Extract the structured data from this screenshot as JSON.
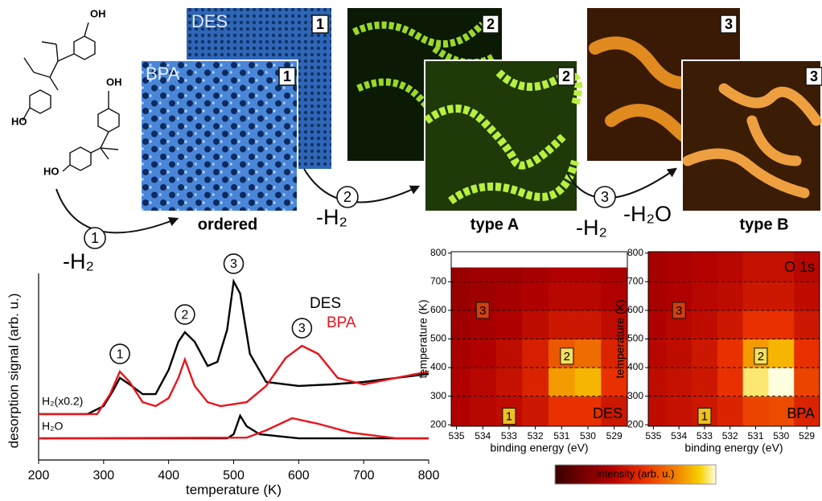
{
  "figure": {
    "panels": [
      {
        "label": "DES",
        "number": "1"
      },
      {
        "label": "BPA",
        "number": "1"
      },
      {
        "number": "2"
      },
      {
        "number": "2"
      },
      {
        "number": "3"
      },
      {
        "number": "3"
      }
    ],
    "phases": [
      "ordered",
      "type A",
      "type B"
    ],
    "steps": [
      {
        "number": "1",
        "loss": "-H₂"
      },
      {
        "number": "2",
        "loss": "-H₂"
      },
      {
        "number": "3",
        "loss": "-H₂",
        "loss2": "-H₂O"
      }
    ],
    "structure_labels": [
      "OH",
      "HO",
      "OH",
      "HO"
    ],
    "colorbar_label": "intensity (arb. u.)"
  },
  "chart_data": [
    {
      "type": "line",
      "xlabel": "temperature (K)",
      "ylabel": "desorption signal (arb. u.)",
      "xlim": [
        200,
        800
      ],
      "xticks": [
        200,
        300,
        400,
        500,
        600,
        700,
        800
      ],
      "ylim": [
        0,
        100
      ],
      "curve_labels": [
        "H₂(x0.2)",
        "H₂O"
      ],
      "series": [
        {
          "name": "DES",
          "color": "#000000",
          "x": [
            200,
            275,
            300,
            315,
            325,
            340,
            360,
            380,
            400,
            415,
            425,
            440,
            460,
            475,
            490,
            500,
            510,
            525,
            550,
            600,
            650,
            700,
            750,
            800
          ],
          "values": [
            24.6,
            24.6,
            28.9,
            37.5,
            44,
            40.5,
            35.3,
            35.3,
            48.3,
            63.4,
            68.5,
            63.4,
            50.4,
            52.6,
            69.8,
            95.7,
            89.2,
            56.9,
            41.8,
            39.7,
            40.5,
            41.8,
            44,
            46.1
          ]
        },
        {
          "name": "BPA",
          "color": "#e8141b",
          "x": [
            200,
            290,
            310,
            325,
            340,
            360,
            380,
            400,
            415,
            425,
            440,
            460,
            480,
            520,
            550,
            580,
            605,
            630,
            660,
            700,
            750,
            800
          ],
          "values": [
            24.6,
            24.6,
            35.3,
            47.4,
            41.8,
            31,
            28.9,
            33.2,
            44,
            53.9,
            39.7,
            31,
            28.9,
            31,
            39.7,
            54.7,
            61.2,
            56.9,
            44,
            40.5,
            44,
            47.4
          ]
        },
        {
          "color": "#000000",
          "x": [
            200,
            490,
            500,
            510,
            520,
            540,
            600,
            800
          ],
          "values": [
            11.6,
            11.6,
            13.8,
            23.7,
            18.1,
            13.8,
            11.6,
            11.6
          ]
        },
        {
          "color": "#e8141b",
          "x": [
            200,
            520,
            550,
            590,
            630,
            680,
            750,
            800
          ],
          "values": [
            11.6,
            12,
            15.9,
            22.4,
            19.4,
            14.7,
            11.6,
            11.6
          ]
        }
      ],
      "annotations": [
        {
          "text": "1",
          "x": 325
        },
        {
          "text": "2",
          "x": 425
        },
        {
          "text": "3",
          "x": 500
        },
        {
          "text": "3",
          "x": 605
        }
      ]
    },
    {
      "type": "heatmap",
      "label": "DES",
      "xlabel": "binding energy (eV)",
      "ylabel": "temperature (K)",
      "xlim": [
        535.2,
        528.5
      ],
      "xticks": [
        535,
        534,
        533,
        532,
        531,
        530,
        529
      ],
      "ylim": [
        195,
        805
      ],
      "yticks": [
        200,
        300,
        400,
        500,
        600,
        700,
        800
      ],
      "grid": true,
      "xbins": [
        535.2,
        534.5,
        533.5,
        532.5,
        531.5,
        530.5,
        529.5,
        528.5
      ],
      "ybins": [
        195,
        300,
        400,
        500,
        600,
        700,
        750
      ],
      "values": [
        [
          0.35,
          0.38,
          0.4,
          0.45,
          0.55,
          0.55,
          0.45
        ],
        [
          0.35,
          0.38,
          0.42,
          0.5,
          0.8,
          0.85,
          0.55
        ],
        [
          0.33,
          0.35,
          0.4,
          0.48,
          0.65,
          0.7,
          0.5
        ],
        [
          0.3,
          0.32,
          0.35,
          0.4,
          0.45,
          0.45,
          0.4
        ],
        [
          0.28,
          0.3,
          0.32,
          0.35,
          0.38,
          0.38,
          0.35
        ],
        [
          0.28,
          0.3,
          0.3,
          0.32,
          0.35,
          0.35,
          0.33
        ]
      ],
      "annotations": [
        {
          "text": "1",
          "x": 533,
          "y": 230
        },
        {
          "text": "2",
          "x": 530.8,
          "y": 440
        },
        {
          "text": "3",
          "x": 534,
          "y": 600
        }
      ]
    },
    {
      "type": "heatmap",
      "label": "BPA",
      "core_level": "O 1s",
      "xlabel": "binding energy (eV)",
      "ylabel": "temperature (K)",
      "xlim": [
        535.2,
        528.5
      ],
      "xticks": [
        535,
        534,
        533,
        532,
        531,
        530,
        529
      ],
      "ylim": [
        195,
        805
      ],
      "yticks": [
        200,
        300,
        400,
        500,
        600,
        700,
        800
      ],
      "grid": true,
      "xbins": [
        535.2,
        534.5,
        533.5,
        532.5,
        531.5,
        530.5,
        529.5,
        528.5
      ],
      "ybins": [
        195,
        300,
        400,
        500,
        600,
        700,
        805
      ],
      "values": [
        [
          0.4,
          0.42,
          0.45,
          0.5,
          0.6,
          0.62,
          0.5
        ],
        [
          0.4,
          0.42,
          0.45,
          0.55,
          0.95,
          1,
          0.6
        ],
        [
          0.38,
          0.4,
          0.45,
          0.55,
          0.8,
          0.85,
          0.55
        ],
        [
          0.35,
          0.38,
          0.4,
          0.45,
          0.55,
          0.55,
          0.45
        ],
        [
          0.33,
          0.35,
          0.38,
          0.4,
          0.45,
          0.45,
          0.4
        ],
        [
          0.32,
          0.34,
          0.36,
          0.38,
          0.42,
          0.42,
          0.38
        ]
      ],
      "annotations": [
        {
          "text": "1",
          "x": 533,
          "y": 230
        },
        {
          "text": "2",
          "x": 530.8,
          "y": 440
        },
        {
          "text": "3",
          "x": 534,
          "y": 600
        }
      ]
    }
  ]
}
